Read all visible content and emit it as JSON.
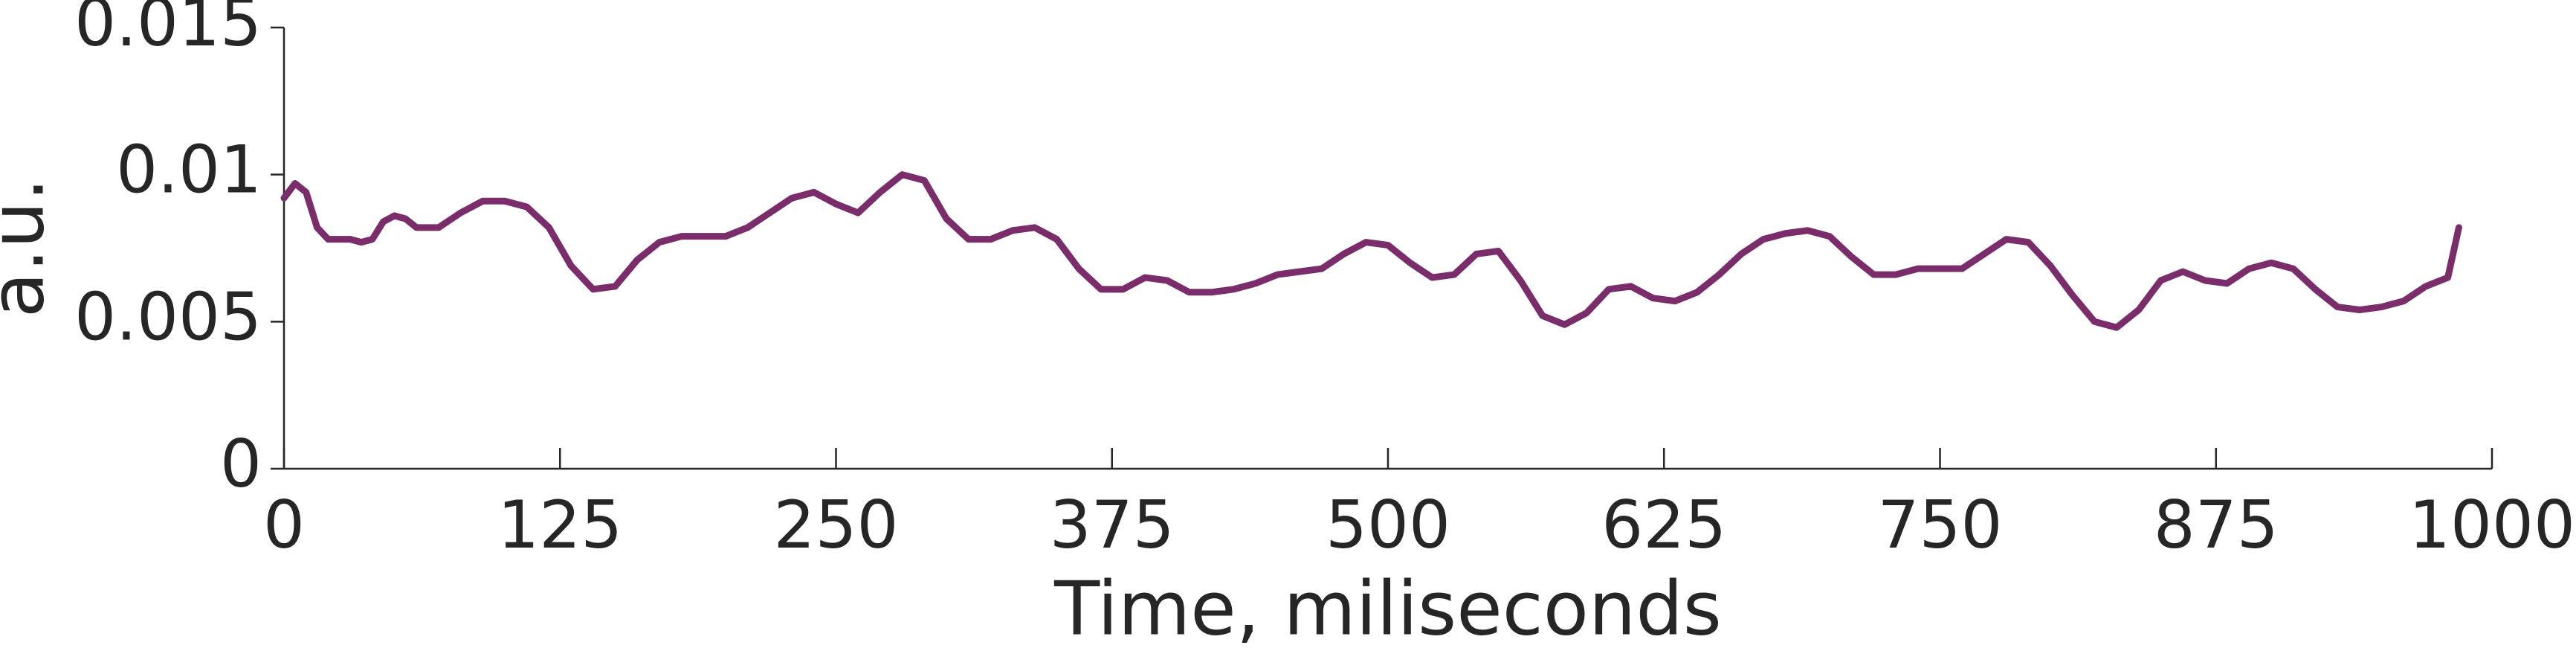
{
  "chart_data": {
    "type": "line",
    "xlabel": "Time, miliseconds",
    "ylabel": "a.u.",
    "x": [
      0,
      5,
      10,
      15,
      20,
      30,
      35,
      40,
      45,
      50,
      55,
      60,
      70,
      80,
      90,
      100,
      110,
      120,
      130,
      140,
      150,
      160,
      170,
      180,
      190,
      200,
      210,
      220,
      230,
      240,
      250,
      260,
      270,
      280,
      290,
      300,
      310,
      320,
      330,
      340,
      350,
      360,
      370,
      380,
      390,
      400,
      410,
      420,
      430,
      440,
      450,
      460,
      470,
      480,
      490,
      500,
      510,
      520,
      530,
      540,
      550,
      560,
      570,
      580,
      590,
      600,
      610,
      620,
      630,
      640,
      650,
      660,
      670,
      680,
      690,
      700,
      710,
      720,
      730,
      740,
      750,
      760,
      770,
      780,
      790,
      800,
      810,
      820,
      830,
      840,
      850,
      860,
      870,
      880,
      890,
      900,
      910,
      920,
      930,
      940,
      950,
      960,
      970,
      980,
      985
    ],
    "series": [
      {
        "color": "#7b2d6b",
        "values": [
          0.0092,
          0.0097,
          0.0094,
          0.0082,
          0.0078,
          0.0078,
          0.0077,
          0.0078,
          0.0084,
          0.0086,
          0.0085,
          0.0082,
          0.0082,
          0.0087,
          0.0091,
          0.0091,
          0.0089,
          0.0082,
          0.0069,
          0.0061,
          0.0062,
          0.0071,
          0.0077,
          0.0079,
          0.0079,
          0.0079,
          0.0082,
          0.0087,
          0.0092,
          0.0094,
          0.009,
          0.0087,
          0.0094,
          0.01,
          0.0098,
          0.0085,
          0.0078,
          0.0078,
          0.0081,
          0.0082,
          0.0078,
          0.0068,
          0.0061,
          0.0061,
          0.0065,
          0.0064,
          0.006,
          0.006,
          0.0061,
          0.0063,
          0.0066,
          0.0067,
          0.0068,
          0.0073,
          0.0077,
          0.0076,
          0.007,
          0.0065,
          0.0066,
          0.0073,
          0.0074,
          0.0064,
          0.0052,
          0.0049,
          0.0053,
          0.0061,
          0.0062,
          0.0058,
          0.0057,
          0.006,
          0.0066,
          0.0073,
          0.0078,
          0.008,
          0.0081,
          0.0079,
          0.0072,
          0.0066,
          0.0066,
          0.0068,
          0.0068,
          0.0068,
          0.0073,
          0.0078,
          0.0077,
          0.0069,
          0.0059,
          0.005,
          0.0048,
          0.0054,
          0.0064,
          0.0067,
          0.0064,
          0.0063,
          0.0068,
          0.007,
          0.0068,
          0.0061,
          0.0055,
          0.0054,
          0.0055,
          0.0057,
          0.0062,
          0.0065,
          0.0082
        ]
      }
    ],
    "xlim": [
      0,
      1000
    ],
    "xticks": [
      0,
      125,
      250,
      375,
      500,
      625,
      750,
      875,
      1000
    ],
    "ylim": [
      0,
      0.015
    ],
    "yticks": [
      0,
      0.005,
      0.01,
      0.015
    ]
  }
}
